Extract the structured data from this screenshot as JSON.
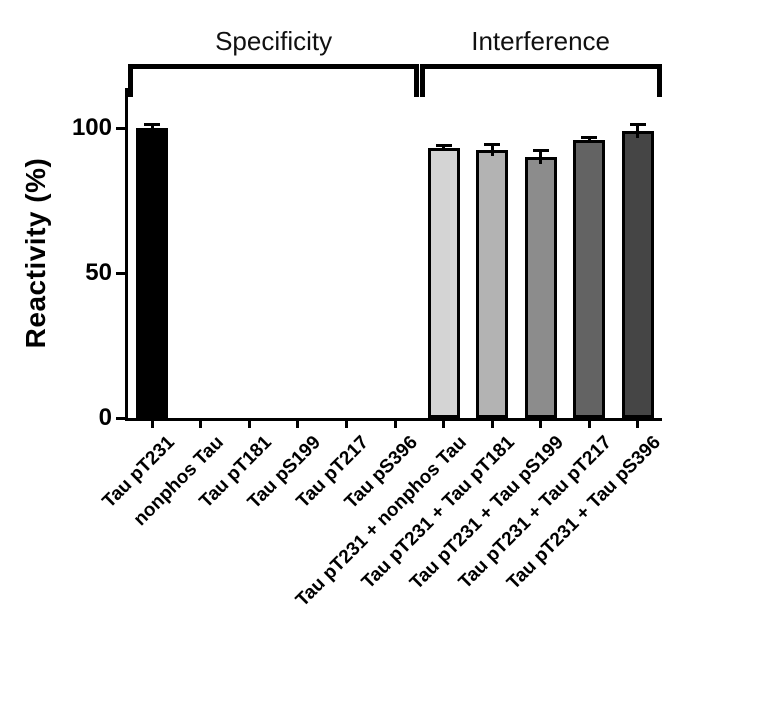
{
  "chart_data": {
    "type": "bar",
    "title": "",
    "ylabel": "Reactivity (%)",
    "ylim": [
      0,
      113
    ],
    "yticks": [
      0,
      50,
      100
    ],
    "grid": false,
    "legend": "none",
    "groups": [
      {
        "label": "Specificity",
        "start": 0,
        "end": 5
      },
      {
        "label": "Interference",
        "start": 6,
        "end": 10
      }
    ],
    "categories": [
      "Tau pT231",
      "nonphos Tau",
      "Tau pT181",
      "Tau pS199",
      "Tau pT217",
      "Tau pS396",
      "Tau pT231 + nonphos Tau",
      "Tau pT231 + Tau pT181",
      "Tau pT231 + Tau pS199",
      "Tau pT231 + Tau pT217",
      "Tau pT231 + Tau pS396"
    ],
    "values": [
      100,
      0,
      0,
      0,
      0,
      0,
      93,
      92.5,
      90,
      96,
      99
    ],
    "errors": [
      1.5,
      0,
      0,
      0,
      0,
      0,
      1,
      2,
      2.5,
      1,
      2.5
    ],
    "colors": [
      "#000000",
      "#000000",
      "#000000",
      "#000000",
      "#000000",
      "#000000",
      "#d4d4d4",
      "#b3b3b3",
      "#8c8c8c",
      "#636363",
      "#454545"
    ]
  }
}
